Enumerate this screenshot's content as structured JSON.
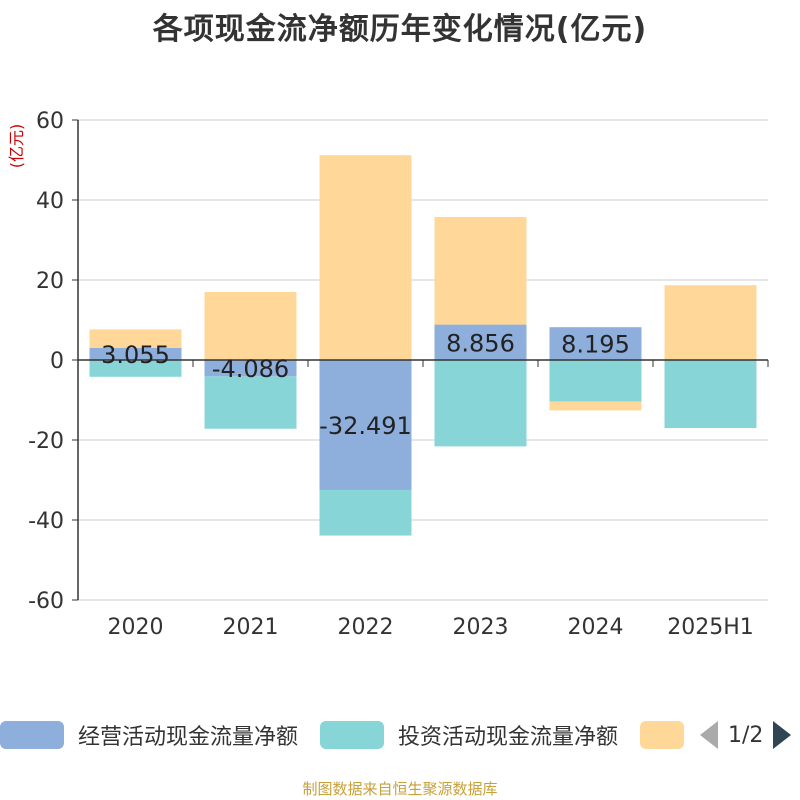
{
  "title": "各项现金流净额历年变化情况(亿元)",
  "source": "制图数据来自恒生聚源数据库",
  "chart_data": {
    "type": "bar",
    "stacked": true,
    "categories": [
      "2020",
      "2021",
      "2022",
      "2023",
      "2024",
      "2025H1"
    ],
    "yunit": "(亿元)",
    "ylim": [
      -60,
      60
    ],
    "yticks": [
      60,
      40,
      20,
      0,
      -20,
      -40,
      -60
    ],
    "grid": true,
    "legend_position": "bottom",
    "series": [
      {
        "name": "经营活动现金流量净额",
        "color": "#8eaedb",
        "values": [
          3.055,
          -4.086,
          -32.491,
          8.856,
          8.195,
          0.1
        ],
        "labels": [
          "3.055",
          "-4.086",
          "-32.491",
          "8.856",
          "8.195",
          ""
        ]
      },
      {
        "name": "投资活动现金流量净额",
        "color": "#88d5d7",
        "values": [
          -4.2,
          -13.1,
          -11.4,
          -21.6,
          -10.4,
          -17.0
        ]
      },
      {
        "name": "",
        "color": "#ffd899",
        "values": [
          4.6,
          17.0,
          51.2,
          26.9,
          -2.2,
          18.6
        ]
      }
    ]
  },
  "legend": {
    "items": [
      {
        "label": "经营活动现金流量净额",
        "color": "#8eaedb"
      },
      {
        "label": "投资活动现金流量净额",
        "color": "#88d5d7"
      },
      {
        "label": "",
        "color": "#ffd899"
      }
    ],
    "pager": "1/2"
  }
}
